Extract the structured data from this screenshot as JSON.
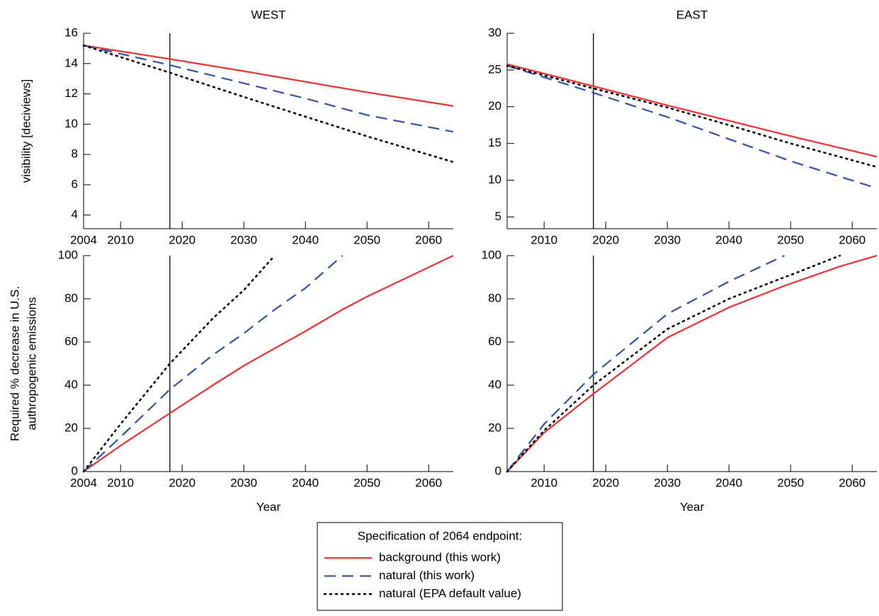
{
  "chart_data": [
    {
      "type": "line",
      "title": "WEST",
      "ylabel": [
        "visibility [deciviews]"
      ],
      "legend_title": "Specification of 2064 endpoint:",
      "x": [
        2004,
        2018,
        2030,
        2040,
        2050,
        2064
      ],
      "xlim": [
        2004,
        2064
      ],
      "xticks": [
        2004,
        2010,
        2020,
        2030,
        2040,
        2050,
        2060
      ],
      "ylim": [
        3.1,
        16
      ],
      "yticks": [
        4,
        6,
        8,
        10,
        12,
        14,
        16
      ],
      "vline": 2018,
      "series": [
        {
          "name": "background (this work)",
          "color": "#e8383a",
          "style": "solid",
          "values": [
            15.2,
            14.3,
            13.5,
            12.8,
            12.1,
            11.2
          ]
        },
        {
          "name": "natural (this work)",
          "color": "#3a57a8",
          "style": "dashed",
          "values": [
            15.2,
            13.9,
            12.7,
            11.7,
            10.6,
            9.5
          ]
        },
        {
          "name": "natural (EPA default value)",
          "color": "#000000",
          "style": "dotted",
          "values": [
            15.2,
            13.4,
            11.8,
            10.5,
            9.2,
            7.5
          ]
        }
      ]
    },
    {
      "type": "line",
      "title": "EAST",
      "x": [
        2004,
        2018,
        2030,
        2040,
        2050,
        2064
      ],
      "xlim": [
        2004,
        2064
      ],
      "xticks": [
        2010,
        2020,
        2030,
        2040,
        2050,
        2060
      ],
      "ylim": [
        3.4,
        30
      ],
      "yticks": [
        5,
        10,
        15,
        20,
        25,
        30
      ],
      "vline": 2018,
      "series": [
        {
          "color": "#e8383a",
          "style": "solid",
          "values": [
            25.8,
            22.8,
            20.2,
            18.1,
            16.0,
            13.2
          ]
        },
        {
          "color": "#3a57a8",
          "style": "dashed",
          "values": [
            25.6,
            21.9,
            18.6,
            15.6,
            12.6,
            8.9
          ]
        },
        {
          "color": "#000000",
          "style": "dotted",
          "values": [
            25.6,
            22.5,
            19.9,
            17.5,
            15.0,
            11.8
          ]
        }
      ]
    },
    {
      "type": "line",
      "xlabel": "Year",
      "ylabel": [
        "Required % decrease in U.S.",
        "authropogenic emissions"
      ],
      "x": [
        2004,
        2010,
        2018,
        2025,
        2030,
        2035,
        2040,
        2046,
        2050,
        2064
      ],
      "xlim": [
        2004,
        2064
      ],
      "xticks": [
        2004,
        2010,
        2020,
        2030,
        2040,
        2050,
        2060
      ],
      "ylim": [
        0,
        100
      ],
      "yticks": [
        0,
        20,
        40,
        60,
        80,
        100
      ],
      "vline": 2018,
      "series": [
        {
          "color": "#e8383a",
          "style": "solid",
          "values": [
            0,
            12,
            27,
            40,
            49,
            57,
            65,
            75,
            81,
            100
          ]
        },
        {
          "color": "#3a57a8",
          "style": "dashed",
          "values": [
            0,
            16,
            38,
            54,
            64,
            75,
            85,
            100,
            null,
            null
          ]
        },
        {
          "color": "#000000",
          "style": "dotted",
          "values": [
            0,
            22,
            50,
            71,
            84,
            100,
            null,
            null,
            null,
            null
          ]
        }
      ]
    },
    {
      "type": "line",
      "xlabel": "Year",
      "x": [
        2004,
        2010,
        2018,
        2030,
        2040,
        2049,
        2050,
        2058,
        2064
      ],
      "xlim": [
        2004,
        2064
      ],
      "xticks": [
        2010,
        2020,
        2030,
        2040,
        2050,
        2060
      ],
      "ylim": [
        0,
        100
      ],
      "yticks": [
        0,
        20,
        40,
        60,
        80,
        100
      ],
      "vline": 2018,
      "series": [
        {
          "color": "#e8383a",
          "style": "solid",
          "values": [
            0,
            18,
            36,
            62,
            76,
            86,
            87,
            95,
            100
          ]
        },
        {
          "color": "#3a57a8",
          "style": "dashed",
          "values": [
            0,
            22,
            45,
            73,
            88,
            100,
            null,
            null,
            null
          ]
        },
        {
          "color": "#000000",
          "style": "dotted",
          "values": [
            0,
            19,
            40,
            66,
            80,
            90,
            91,
            100,
            null
          ]
        }
      ]
    }
  ]
}
